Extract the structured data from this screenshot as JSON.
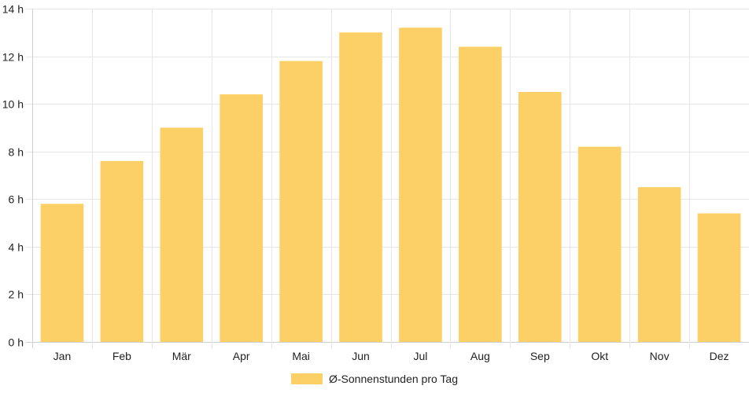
{
  "chart_data": {
    "type": "bar",
    "categories": [
      "Jan",
      "Feb",
      "Mär",
      "Apr",
      "Mai",
      "Jun",
      "Jul",
      "Aug",
      "Sep",
      "Okt",
      "Nov",
      "Dez"
    ],
    "series": [
      {
        "name": "Ø-Sonnenstunden pro Tag",
        "values": [
          5.8,
          7.6,
          9.0,
          10.4,
          11.8,
          13.0,
          13.2,
          12.4,
          10.5,
          8.2,
          6.5,
          5.4
        ],
        "color": "#fdd067"
      }
    ],
    "y_ticks": [
      "0 h",
      "2 h",
      "4 h",
      "6 h",
      "8 h",
      "10 h",
      "12 h",
      "14 h"
    ],
    "ylim": [
      0,
      14
    ],
    "grid": true,
    "legend_position": "bottom"
  }
}
